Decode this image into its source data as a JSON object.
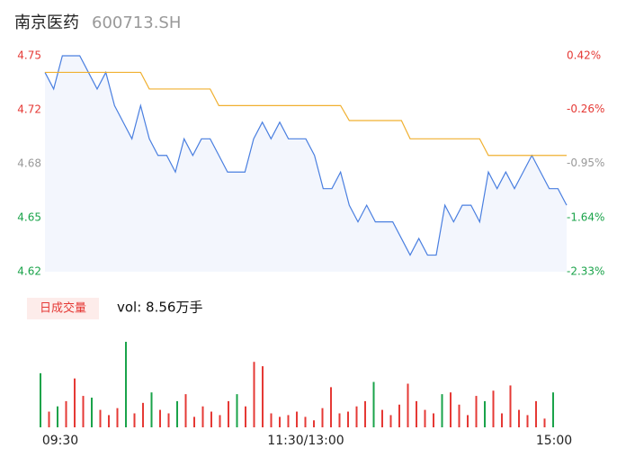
{
  "header": {
    "title": "南京医药",
    "code": "600713.SH"
  },
  "chart_data": [
    {
      "type": "line",
      "x": [
        0,
        4,
        8,
        12,
        16,
        20,
        24,
        28,
        32,
        36,
        40,
        44,
        48,
        52,
        56,
        60,
        64,
        68,
        72,
        76,
        80,
        84,
        88,
        92,
        96,
        100,
        104,
        108,
        112,
        116,
        120,
        124,
        128,
        132,
        136,
        140,
        144,
        148,
        152,
        156,
        160,
        164,
        168,
        172,
        176,
        180,
        184,
        188,
        192,
        196,
        200,
        204,
        208,
        212,
        216,
        220,
        224,
        228,
        232,
        236,
        240
      ],
      "series": [
        {
          "color": "#4a7fe0",
          "values": [
            4.74,
            4.73,
            4.75,
            4.75,
            4.75,
            4.74,
            4.73,
            4.74,
            4.72,
            4.71,
            4.7,
            4.72,
            4.7,
            4.69,
            4.69,
            4.68,
            4.7,
            4.69,
            4.7,
            4.7,
            4.69,
            4.68,
            4.68,
            4.68,
            4.7,
            4.71,
            4.7,
            4.71,
            4.7,
            4.7,
            4.7,
            4.69,
            4.67,
            4.67,
            4.68,
            4.66,
            4.65,
            4.66,
            4.65,
            4.65,
            4.65,
            4.64,
            4.63,
            4.64,
            4.63,
            4.63,
            4.66,
            4.65,
            4.66,
            4.66,
            4.65,
            4.68,
            4.67,
            4.68,
            4.67,
            4.68,
            4.69,
            4.68,
            4.67,
            4.67,
            4.66
          ]
        },
        {
          "color": "#f0b030",
          "values": [
            4.74,
            4.74,
            4.74,
            4.74,
            4.74,
            4.74,
            4.74,
            4.74,
            4.74,
            4.74,
            4.74,
            4.74,
            4.73,
            4.73,
            4.73,
            4.73,
            4.73,
            4.73,
            4.73,
            4.73,
            4.72,
            4.72,
            4.72,
            4.72,
            4.72,
            4.72,
            4.72,
            4.72,
            4.72,
            4.72,
            4.72,
            4.72,
            4.72,
            4.72,
            4.72,
            4.711,
            4.711,
            4.711,
            4.711,
            4.711,
            4.711,
            4.711,
            4.7,
            4.7,
            4.7,
            4.7,
            4.7,
            4.7,
            4.7,
            4.7,
            4.7,
            4.69,
            4.69,
            4.69,
            4.69,
            4.69,
            4.69,
            4.69,
            4.69,
            4.69,
            4.69
          ]
        }
      ],
      "xlim": [
        0,
        240
      ],
      "xticks": [
        {
          "value": 0,
          "label": "09:30"
        },
        {
          "value": 120,
          "label": "11:30/13:00"
        },
        {
          "value": 240,
          "label": "15:00"
        }
      ],
      "ylim": [
        4.62,
        4.75
      ],
      "yticks": [
        {
          "value": 4.75,
          "label": "4.75"
        },
        {
          "value": 4.7175,
          "label": "4.72"
        },
        {
          "value": 4.685,
          "label": "4.68"
        },
        {
          "value": 4.6525,
          "label": "4.65"
        },
        {
          "value": 4.62,
          "label": "4.62"
        }
      ],
      "y2lim": [
        -2.33,
        0.42
      ],
      "y2ticks": [
        {
          "value": 0.42,
          "label": "0.42%"
        },
        {
          "value": -0.26,
          "label": "-0.26%"
        },
        {
          "value": -0.95,
          "label": "-0.95%"
        },
        {
          "value": -1.64,
          "label": "-1.64%"
        },
        {
          "value": -2.33,
          "label": "-2.33%"
        }
      ]
    },
    {
      "type": "bar",
      "label": "日成交量",
      "vol": "vol: 8.56万手",
      "ylim": [
        0,
        100
      ],
      "series": [
        {
          "color": "#1aa34a",
          "values": [
            62,
            null,
            24,
            null,
            null,
            null,
            34,
            null,
            null,
            null,
            98,
            null,
            null,
            40,
            null,
            null,
            30,
            null,
            null,
            null,
            null,
            null,
            null,
            38,
            null,
            null,
            null,
            null,
            null,
            null,
            null,
            null,
            null,
            null,
            null,
            null,
            null,
            null,
            null,
            52,
            null,
            null,
            null,
            null,
            null,
            null,
            null,
            38,
            null,
            null,
            null,
            null,
            30,
            null,
            null,
            null,
            null,
            null,
            null,
            null,
            40
          ]
        },
        {
          "color": "#e53935",
          "values": [
            null,
            18,
            null,
            30,
            56,
            36,
            null,
            20,
            14,
            22,
            null,
            16,
            28,
            null,
            20,
            16,
            null,
            38,
            12,
            24,
            18,
            14,
            30,
            null,
            24,
            75,
            70,
            16,
            12,
            14,
            18,
            12,
            8,
            22,
            46,
            16,
            18,
            24,
            30,
            null,
            20,
            14,
            26,
            50,
            30,
            20,
            16,
            null,
            40,
            26,
            14,
            36,
            null,
            42,
            16,
            48,
            20,
            14,
            30,
            10,
            null
          ]
        }
      ]
    }
  ]
}
